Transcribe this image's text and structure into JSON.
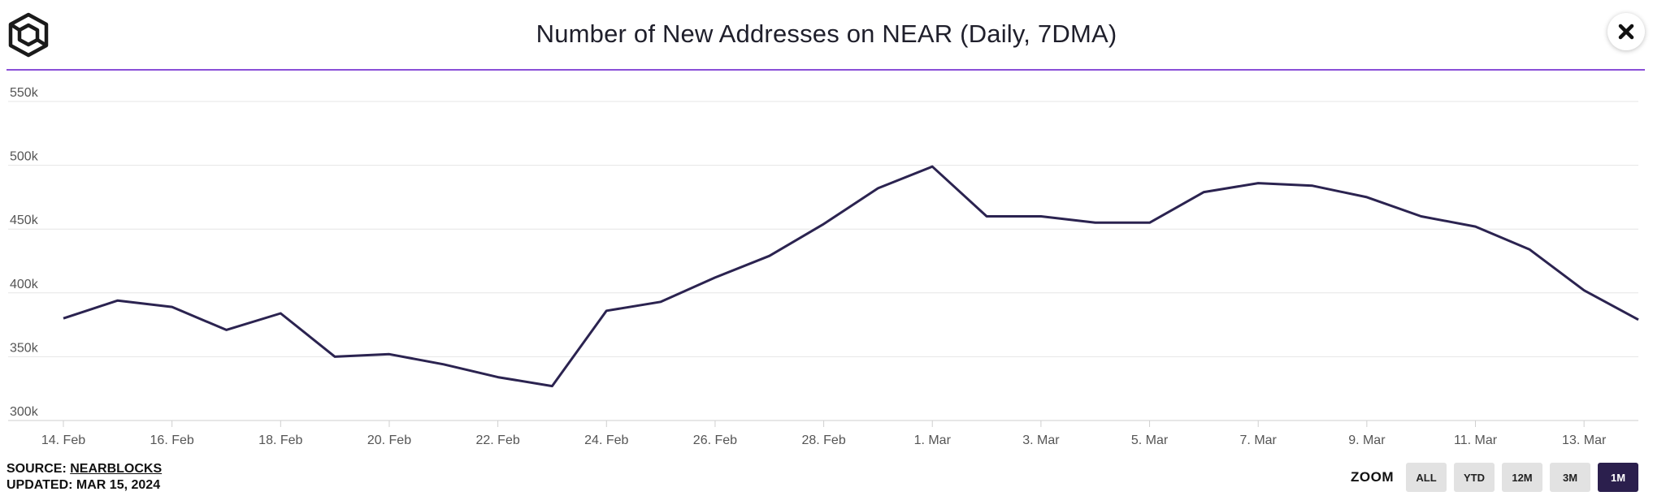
{
  "header": {
    "title": "Number of New Addresses on NEAR (Daily, 7DMA)"
  },
  "footer": {
    "source_label": "SOURCE:",
    "source_name": "NEARBLOCKS",
    "updated": "UPDATED: MAR 15, 2024"
  },
  "zoom": {
    "label": "ZOOM",
    "options": [
      "ALL",
      "YTD",
      "12M",
      "3M",
      "1M"
    ],
    "active": "1M"
  },
  "colors": {
    "line": "#2b2350",
    "accent": "#8a4fd8",
    "grid": "#e6e6e6"
  },
  "chart_data": {
    "type": "line",
    "title": "Number of New Addresses on NEAR (Daily, 7DMA)",
    "xlabel": "",
    "ylabel": "",
    "ylim": [
      300000,
      550000
    ],
    "yticks": [
      300000,
      350000,
      400000,
      450000,
      500000,
      550000
    ],
    "ytick_labels": [
      "300k",
      "350k",
      "400k",
      "450k",
      "500k",
      "550k"
    ],
    "xticks": [
      "14. Feb",
      "16. Feb",
      "18. Feb",
      "20. Feb",
      "22. Feb",
      "24. Feb",
      "26. Feb",
      "28. Feb",
      "1. Mar",
      "3. Mar",
      "5. Mar",
      "7. Mar",
      "9. Mar",
      "11. Mar",
      "13. Mar"
    ],
    "grid": true,
    "legend": "none",
    "x": [
      "2024-02-14",
      "2024-02-15",
      "2024-02-16",
      "2024-02-17",
      "2024-02-18",
      "2024-02-19",
      "2024-02-20",
      "2024-02-21",
      "2024-02-22",
      "2024-02-23",
      "2024-02-24",
      "2024-02-25",
      "2024-02-26",
      "2024-02-27",
      "2024-02-28",
      "2024-02-29",
      "2024-03-01",
      "2024-03-02",
      "2024-03-03",
      "2024-03-04",
      "2024-03-05",
      "2024-03-06",
      "2024-03-07",
      "2024-03-08",
      "2024-03-09",
      "2024-03-10",
      "2024-03-11",
      "2024-03-12",
      "2024-03-13",
      "2024-03-14"
    ],
    "series": [
      {
        "values": [
          380000,
          394000,
          389000,
          371000,
          384000,
          350000,
          352000,
          344000,
          334000,
          327000,
          386000,
          393000,
          412000,
          429000,
          454000,
          482000,
          499000,
          460000,
          460000,
          455000,
          455000,
          479000,
          486000,
          484000,
          475000,
          460000,
          452000,
          434000,
          402000,
          379000
        ]
      }
    ]
  }
}
